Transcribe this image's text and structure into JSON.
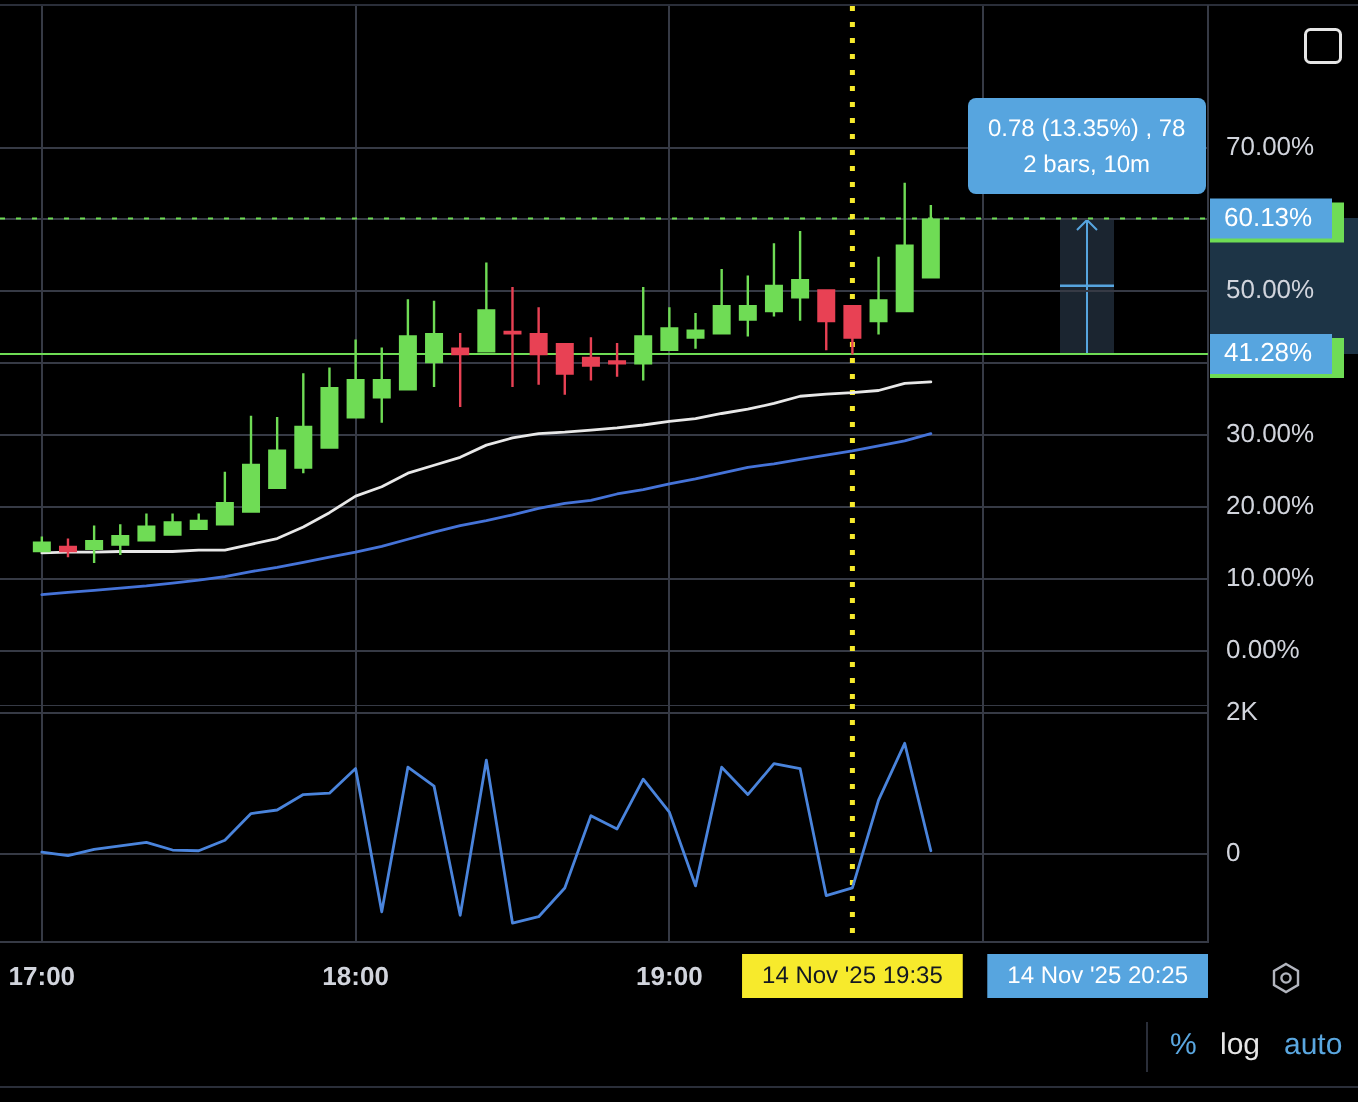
{
  "chart_data": [
    {
      "type": "candlestick",
      "x": [
        "2025-11-14T17:00",
        "2025-11-14T17:05",
        "2025-11-14T17:10",
        "2025-11-14T17:15",
        "2025-11-14T17:20",
        "2025-11-14T17:25",
        "2025-11-14T17:30",
        "2025-11-14T17:35",
        "2025-11-14T17:40",
        "2025-11-14T17:45",
        "2025-11-14T17:50",
        "2025-11-14T17:55",
        "2025-11-14T18:00",
        "2025-11-14T18:05",
        "2025-11-14T18:10",
        "2025-11-14T18:15",
        "2025-11-14T18:20",
        "2025-11-14T18:25",
        "2025-11-14T18:30",
        "2025-11-14T18:35",
        "2025-11-14T18:40",
        "2025-11-14T18:45",
        "2025-11-14T18:50",
        "2025-11-14T18:55",
        "2025-11-14T19:00",
        "2025-11-14T19:05",
        "2025-11-14T19:10",
        "2025-11-14T19:15",
        "2025-11-14T19:20",
        "2025-11-14T19:25",
        "2025-11-14T19:30",
        "2025-11-14T19:35",
        "2025-11-14T19:40",
        "2025-11-14T19:45",
        "2025-11-14T19:50"
      ],
      "ohlc": [
        [
          13.7,
          15.9,
          13.7,
          15.2
        ],
        [
          14.6,
          15.6,
          13.0,
          13.7
        ],
        [
          14.0,
          17.4,
          12.2,
          15.4
        ],
        [
          14.6,
          17.6,
          13.3,
          16.1
        ],
        [
          15.2,
          19.1,
          15.2,
          17.4
        ],
        [
          16.0,
          19.1,
          16.0,
          18.0
        ],
        [
          16.8,
          19.1,
          16.8,
          18.2
        ],
        [
          17.4,
          24.9,
          17.4,
          20.7
        ],
        [
          19.2,
          32.7,
          19.2,
          26.0
        ],
        [
          22.5,
          32.5,
          22.5,
          28.0
        ],
        [
          25.3,
          38.6,
          24.7,
          31.3
        ],
        [
          28.1,
          39.4,
          28.1,
          36.7
        ],
        [
          32.3,
          43.3,
          32.3,
          37.8
        ],
        [
          35.1,
          42.2,
          31.7,
          37.8
        ],
        [
          36.2,
          48.9,
          36.2,
          43.9
        ],
        [
          40.0,
          48.7,
          36.7,
          44.2
        ],
        [
          42.2,
          44.2,
          33.9,
          41.1
        ],
        [
          41.5,
          54.0,
          41.5,
          47.5
        ],
        [
          44.5,
          50.6,
          36.7,
          44.0
        ],
        [
          44.2,
          47.8,
          37.0,
          41.1
        ],
        [
          42.8,
          42.8,
          35.6,
          38.4
        ],
        [
          40.9,
          43.6,
          37.6,
          39.5
        ],
        [
          40.4,
          42.8,
          38.1,
          39.8
        ],
        [
          39.8,
          50.6,
          37.6,
          43.9
        ],
        [
          41.7,
          47.8,
          41.7,
          45.0
        ],
        [
          43.4,
          47.0,
          42.0,
          44.7
        ],
        [
          44.0,
          53.1,
          44.0,
          48.1
        ],
        [
          45.9,
          52.2,
          43.7,
          48.1
        ],
        [
          47.1,
          56.7,
          46.5,
          50.9
        ],
        [
          49.0,
          58.4,
          45.9,
          51.7
        ],
        [
          50.3,
          50.3,
          41.8,
          45.7
        ],
        [
          48.1,
          48.1,
          41.2,
          43.4
        ],
        [
          45.7,
          54.8,
          44.0,
          48.9
        ],
        [
          47.1,
          65.1,
          47.1,
          56.5
        ],
        [
          51.8,
          62.0,
          51.8,
          60.13
        ]
      ],
      "colors": [
        "#6fdc55",
        "#e84154",
        "#6fdc55",
        "#6fdc55",
        "#6fdc55",
        "#6fdc55",
        "#6fdc55",
        "#6fdc55",
        "#6fdc55",
        "#6fdc55",
        "#6fdc55",
        "#6fdc55",
        "#6fdc55",
        "#6fdc55",
        "#6fdc55",
        "#6fdc55",
        "#e84154",
        "#6fdc55",
        "#e84154",
        "#e84154",
        "#e84154",
        "#e84154",
        "#e84154",
        "#6fdc55",
        "#6fdc55",
        "#6fdc55",
        "#6fdc55",
        "#6fdc55",
        "#6fdc55",
        "#6fdc55",
        "#e84154",
        "#e84154",
        "#6fdc55",
        "#6fdc55",
        "#6fdc55"
      ],
      "series": [
        {
          "type": "line",
          "color": "#e8e8e8",
          "values": [
            13.6,
            13.7,
            13.7,
            13.8,
            13.8,
            13.8,
            14.0,
            14.0,
            14.8,
            15.6,
            17.2,
            19.2,
            21.5,
            22.8,
            24.7,
            25.8,
            26.9,
            28.6,
            29.6,
            30.2,
            30.4,
            30.7,
            31.0,
            31.4,
            31.9,
            32.3,
            33.0,
            33.6,
            34.4,
            35.4,
            35.7,
            35.9,
            36.2,
            37.2,
            37.4
          ]
        },
        {
          "type": "line",
          "color": "#4573d8",
          "values": [
            7.8,
            8.1,
            8.4,
            8.7,
            9.0,
            9.4,
            9.8,
            10.3,
            11.0,
            11.6,
            12.3,
            13.0,
            13.7,
            14.5,
            15.5,
            16.5,
            17.4,
            18.1,
            18.9,
            19.8,
            20.5,
            20.9,
            21.8,
            22.4,
            23.2,
            23.9,
            24.7,
            25.5,
            26.0,
            26.6,
            27.2,
            27.8,
            28.5,
            29.2,
            30.2
          ]
        }
      ],
      "xlim": [
        "2025-11-14T16:52",
        "2025-11-14T20:43"
      ],
      "xticks": [
        {
          "value": "2025-11-14T17:00",
          "label": null
        },
        {
          "value": "2025-11-14T18:00",
          "label": null
        },
        {
          "value": "2025-11-14T19:00",
          "label": null
        },
        {
          "value": "2025-11-14T20:00",
          "label": null
        }
      ],
      "ylim": [
        -7.7,
        89.7
      ],
      "yticks": [
        {
          "value": 0,
          "label": "0.00%"
        },
        {
          "value": 10,
          "label": "10.00%"
        },
        {
          "value": 20,
          "label": "20.00%"
        },
        {
          "value": 30,
          "label": "30.00%"
        },
        {
          "value": 40,
          "label": null
        },
        {
          "value": 50,
          "label": "50.00%"
        },
        {
          "value": 60,
          "label": null
        },
        {
          "value": 70,
          "label": "70.00%"
        }
      ],
      "grid": true,
      "tick_labels": "y",
      "ref_lines": [
        {
          "axis": "y",
          "value": 60.13,
          "label": "60.13%",
          "color": "#6fdc55",
          "line_style": "dotted"
        },
        {
          "axis": "y",
          "value": 41.28,
          "label": "41.28%",
          "color": "#6fdc55"
        },
        {
          "axis": "x",
          "value": "2025-11-14T19:35",
          "color": "#f7ea2c",
          "line_style": "dotted"
        }
      ],
      "annotations": [
        "0.78 (13.35%) , 78",
        "2 bars, 10m"
      ]
    },
    {
      "type": "line",
      "x": [
        "2025-11-14T17:00",
        "2025-11-14T17:05",
        "2025-11-14T17:10",
        "2025-11-14T17:15",
        "2025-11-14T17:20",
        "2025-11-14T17:25",
        "2025-11-14T17:30",
        "2025-11-14T17:35",
        "2025-11-14T17:40",
        "2025-11-14T17:45",
        "2025-11-14T17:50",
        "2025-11-14T17:55",
        "2025-11-14T18:00",
        "2025-11-14T18:05",
        "2025-11-14T18:10",
        "2025-11-14T18:15",
        "2025-11-14T18:20",
        "2025-11-14T18:25",
        "2025-11-14T18:30",
        "2025-11-14T18:35",
        "2025-11-14T18:40",
        "2025-11-14T18:45",
        "2025-11-14T18:50",
        "2025-11-14T18:55",
        "2025-11-14T19:00",
        "2025-11-14T19:05",
        "2025-11-14T19:10",
        "2025-11-14T19:15",
        "2025-11-14T19:20",
        "2025-11-14T19:25",
        "2025-11-14T19:30",
        "2025-11-14T19:35",
        "2025-11-14T19:40",
        "2025-11-14T19:45",
        "2025-11-14T19:50"
      ],
      "values": [
        20,
        -30,
        60,
        110,
        160,
        50,
        40,
        190,
        570,
        620,
        840,
        860,
        1210,
        -830,
        1230,
        960,
        -880,
        1330,
        -990,
        -900,
        -490,
        540,
        350,
        1060,
        590,
        -460,
        1230,
        840,
        1280,
        1210,
        -600,
        -490,
        760,
        1570,
        40
      ],
      "color": "#4a84dc",
      "xlim": [
        "2025-11-14T16:52",
        "2025-11-14T20:43"
      ],
      "xticks": [
        {
          "value": "2025-11-14T17:00",
          "label": "17:00"
        },
        {
          "value": "2025-11-14T18:00",
          "label": "18:00"
        },
        {
          "value": "2025-11-14T19:00",
          "label": "19:00"
        },
        {
          "value": "2025-11-14T20:00",
          "label": null
        }
      ],
      "ylim": [
        -1260,
        2130
      ],
      "yticks": [
        0,
        {
          "value": 2000,
          "label": "2K"
        }
      ],
      "grid": true,
      "ref_lines": [
        {
          "axis": "x",
          "value": "2025-11-14T19:35",
          "label": "14 Nov '25 19:35",
          "color": "#f7ea2c",
          "line_style": "dotted"
        }
      ],
      "annotations": [
        "14 Nov '25 20:25",
        "%",
        "log",
        "auto"
      ]
    }
  ]
}
